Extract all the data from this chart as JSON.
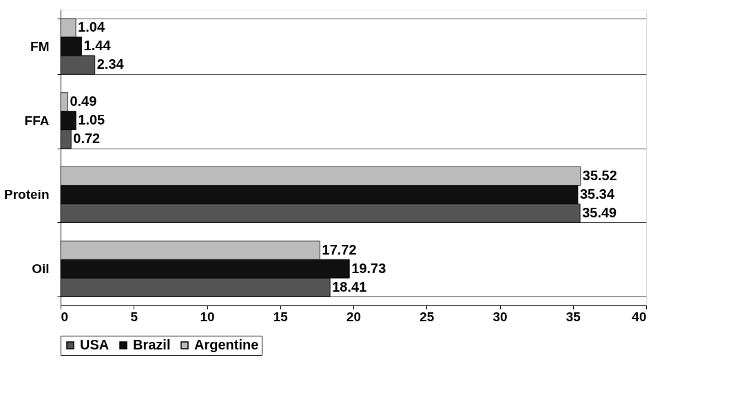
{
  "chart_data": {
    "type": "bar",
    "orientation": "horizontal",
    "categories": [
      "FM",
      "FFA",
      "Protein",
      "Oil"
    ],
    "series": [
      {
        "name": "USA",
        "color": "#555555",
        "values": [
          2.34,
          0.72,
          35.49,
          18.41
        ]
      },
      {
        "name": "Brazil",
        "color": "#111111",
        "values": [
          1.44,
          1.05,
          35.34,
          19.73
        ]
      },
      {
        "name": "Argentine",
        "color": "#bbbbbb",
        "values": [
          1.04,
          0.49,
          35.52,
          17.72
        ]
      }
    ],
    "xlim": [
      0,
      40
    ],
    "xticks": [
      0,
      5,
      10,
      15,
      20,
      25,
      30,
      35,
      40
    ],
    "data_labels": true,
    "grid": "y",
    "legend": "bottom"
  }
}
